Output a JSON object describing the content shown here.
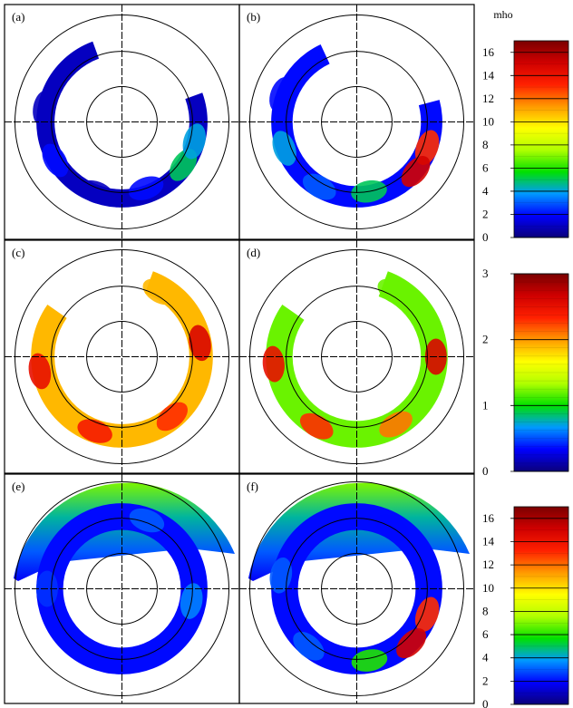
{
  "unit_label": "mho",
  "chart_data": [
    {
      "type": "heatmap",
      "projection": "polar",
      "panels": [
        {
          "label": "(a)",
          "colorbar": 0,
          "arc": {
            "inner": 0.63,
            "outer": 0.8,
            "start": 70,
            "end": 340
          },
          "blobs": [
            {
              "lat": 125,
              "r": 0.7,
              "value": 5
            },
            {
              "lat": 105,
              "r": 0.7,
              "value": 4
            },
            {
              "lat": 160,
              "r": 0.66,
              "value": 2
            },
            {
              "lat": 200,
              "r": 0.7,
              "value": 1
            },
            {
              "lat": 240,
              "r": 0.72,
              "value": 2
            },
            {
              "lat": 280,
              "r": 0.74,
              "value": 1
            }
          ]
        },
        {
          "label": "(b)",
          "colorbar": 0,
          "arc": {
            "inner": 0.6,
            "outer": 0.8,
            "start": 75,
            "end": 335
          },
          "blobs": [
            {
              "lat": 110,
              "r": 0.7,
              "value": 13
            },
            {
              "lat": 130,
              "r": 0.72,
              "value": 15
            },
            {
              "lat": 170,
              "r": 0.66,
              "value": 5
            },
            {
              "lat": 210,
              "r": 0.7,
              "value": 3
            },
            {
              "lat": 250,
              "r": 0.72,
              "value": 4
            },
            {
              "lat": 290,
              "r": 0.75,
              "value": 2
            }
          ]
        },
        {
          "label": "(c)",
          "colorbar": 1,
          "arc": {
            "inner": 0.63,
            "outer": 0.85,
            "start": 20,
            "end": 305
          },
          "blobs": [
            {
              "lat": 80,
              "r": 0.74,
              "value": 2.6
            },
            {
              "lat": 140,
              "r": 0.73,
              "value": 2.3
            },
            {
              "lat": 200,
              "r": 0.74,
              "value": 2.4
            },
            {
              "lat": 260,
              "r": 0.78,
              "value": 2.5
            },
            {
              "lat": 30,
              "r": 0.7,
              "value": 1.9
            }
          ]
        },
        {
          "label": "(d)",
          "colorbar": 1,
          "arc": {
            "inner": 0.6,
            "outer": 0.85,
            "start": 20,
            "end": 305
          },
          "blobs": [
            {
              "lat": 90,
              "r": 0.74,
              "value": 2.6
            },
            {
              "lat": 150,
              "r": 0.73,
              "value": 2.1
            },
            {
              "lat": 210,
              "r": 0.75,
              "value": 2.3
            },
            {
              "lat": 265,
              "r": 0.78,
              "value": 2.5
            },
            {
              "lat": 30,
              "r": 0.7,
              "value": 1.2
            }
          ]
        },
        {
          "label": "(e)",
          "colorbar": 2,
          "arc": {
            "inner": 0.55,
            "outer": 0.8,
            "start": 0,
            "end": 360
          },
          "blobs": [
            {
              "lat": 20,
              "r": 0.68,
              "value": 3
            },
            {
              "lat": 100,
              "r": 0.66,
              "value": 3.5
            },
            {
              "lat": 190,
              "r": 0.7,
              "value": 2
            },
            {
              "lat": 270,
              "r": 0.7,
              "value": 2.5
            }
          ]
        },
        {
          "label": "(f)",
          "colorbar": 2,
          "arc": {
            "inner": 0.55,
            "outer": 0.8,
            "start": 0,
            "end": 360
          },
          "blobs": [
            {
              "lat": 110,
              "r": 0.7,
              "value": 13
            },
            {
              "lat": 135,
              "r": 0.72,
              "value": 15
            },
            {
              "lat": 170,
              "r": 0.68,
              "value": 6
            },
            {
              "lat": 220,
              "r": 0.7,
              "value": 3
            },
            {
              "lat": 280,
              "r": 0.72,
              "value": 3
            },
            {
              "lat": 30,
              "r": 0.66,
              "value": 2
            }
          ]
        }
      ],
      "rings": [
        0.33,
        0.66,
        1.0
      ],
      "cap_panels": [
        "(e)",
        "(f)"
      ],
      "colorbars": [
        {
          "min": 0,
          "max": 17,
          "ticks": [
            0,
            2,
            4,
            6,
            8,
            10,
            12,
            14,
            16
          ]
        },
        {
          "min": 0,
          "max": 3,
          "ticks": [
            0,
            1,
            2,
            3
          ]
        },
        {
          "min": 0,
          "max": 17,
          "ticks": [
            0,
            2,
            4,
            6,
            8,
            10,
            12,
            14,
            16
          ]
        }
      ],
      "colormap": [
        "#0b007a",
        "#0000ff",
        "#0099ff",
        "#00e000",
        "#b0ff00",
        "#ffff00",
        "#ff9900",
        "#ff2000",
        "#d00000",
        "#7a0000"
      ]
    }
  ]
}
